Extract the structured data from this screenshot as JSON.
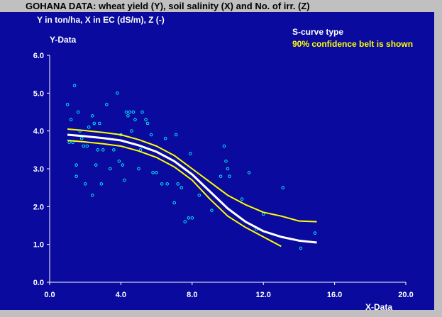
{
  "chart_data": {
    "type": "scatter",
    "title": "GOHANA DATA: wheat yield (Y), soil salinity (X) and No. of irr. (Z)",
    "subtitle": "Y in ton/ha, X in EC (dS/m), Z (-)",
    "y_label": "Y-Data",
    "x_label": "X-Data",
    "annotations": [
      {
        "text": "S-curve type",
        "color": "#ffffff"
      },
      {
        "text": "90% confidence belt is shown",
        "color": "#ffff00"
      }
    ],
    "xlim": [
      0,
      20
    ],
    "ylim": [
      0,
      6
    ],
    "xticks": [
      {
        "value": 0,
        "label": "0.0"
      },
      {
        "value": 4,
        "label": "4.0"
      },
      {
        "value": 8,
        "label": "8.0"
      },
      {
        "value": 12,
        "label": "12.0"
      },
      {
        "value": 16,
        "label": "16.0"
      },
      {
        "value": 20,
        "label": "20.0"
      }
    ],
    "yticks": [
      {
        "value": 0,
        "label": "0.0"
      },
      {
        "value": 1,
        "label": "1.0"
      },
      {
        "value": 2,
        "label": "2.0"
      },
      {
        "value": 3,
        "label": "3.0"
      },
      {
        "value": 4,
        "label": "4.0"
      },
      {
        "value": 5,
        "label": "5.0"
      },
      {
        "value": 6,
        "label": "6.0"
      }
    ],
    "series": [
      {
        "type": "scatter",
        "color": "#00ffff",
        "x": [
          1.0,
          1.4,
          1.2,
          1.1,
          1.3,
          1.5,
          1.6,
          1.7,
          1.5,
          1.8,
          1.9,
          2.0,
          2.1,
          2.2,
          2.4,
          2.5,
          2.4,
          2.6,
          2.7,
          2.8,
          2.9,
          3.0,
          3.2,
          3.4,
          3.6,
          3.8,
          3.9,
          4.0,
          4.1,
          4.2,
          4.3,
          4.4,
          4.5,
          4.6,
          4.7,
          4.8,
          5.0,
          5.1,
          5.2,
          5.4,
          5.5,
          5.7,
          5.8,
          6.0,
          6.3,
          6.5,
          6.6,
          7.0,
          7.1,
          7.2,
          7.4,
          7.6,
          7.8,
          8.0,
          7.9,
          8.4,
          9.1,
          9.6,
          9.8,
          9.9,
          10.0,
          10.1,
          10.8,
          11.2,
          11.6,
          12.0,
          13.1,
          14.1,
          14.9
        ],
        "values": [
          4.7,
          5.2,
          4.3,
          3.7,
          3.7,
          3.1,
          4.5,
          4.0,
          2.8,
          3.8,
          3.6,
          2.6,
          3.6,
          4.1,
          4.4,
          4.2,
          2.3,
          3.1,
          3.5,
          4.2,
          2.6,
          3.5,
          4.7,
          3.0,
          3.5,
          5.0,
          3.2,
          3.9,
          3.1,
          2.7,
          4.5,
          4.4,
          4.5,
          4.0,
          4.5,
          4.3,
          3.0,
          3.5,
          4.5,
          4.3,
          4.2,
          3.9,
          2.9,
          2.9,
          2.6,
          3.8,
          2.6,
          2.1,
          3.9,
          2.6,
          2.5,
          1.6,
          1.7,
          1.7,
          3.4,
          2.3,
          1.9,
          2.8,
          3.6,
          3.2,
          3.0,
          2.8,
          2.2,
          2.9,
          1.4,
          1.8,
          2.5,
          0.9,
          1.3
        ]
      },
      {
        "type": "line",
        "color": "#ffffff",
        "width": 3,
        "x": [
          1,
          2,
          3,
          4,
          5,
          6,
          7,
          8,
          9,
          10,
          11,
          12,
          13,
          14,
          15
        ],
        "values": [
          3.9,
          3.86,
          3.81,
          3.75,
          3.62,
          3.45,
          3.2,
          2.85,
          2.4,
          1.95,
          1.6,
          1.35,
          1.2,
          1.1,
          1.05
        ]
      },
      {
        "type": "line",
        "color": "#ffff00",
        "width": 2,
        "x": [
          1,
          2,
          3,
          4,
          5,
          6,
          7,
          8,
          9,
          10,
          11,
          12,
          13,
          14,
          15
        ],
        "values": [
          4.05,
          4.01,
          3.96,
          3.9,
          3.77,
          3.6,
          3.35,
          3.0,
          2.65,
          2.3,
          2.05,
          1.85,
          1.75,
          1.62,
          1.6
        ]
      },
      {
        "type": "line",
        "color": "#ffff00",
        "width": 2,
        "x": [
          1,
          2,
          3,
          4,
          5,
          6,
          7,
          8,
          9,
          10,
          11,
          12,
          13
        ],
        "values": [
          3.75,
          3.71,
          3.66,
          3.6,
          3.47,
          3.3,
          3.05,
          2.7,
          2.2,
          1.75,
          1.45,
          1.2,
          0.95
        ]
      }
    ]
  }
}
